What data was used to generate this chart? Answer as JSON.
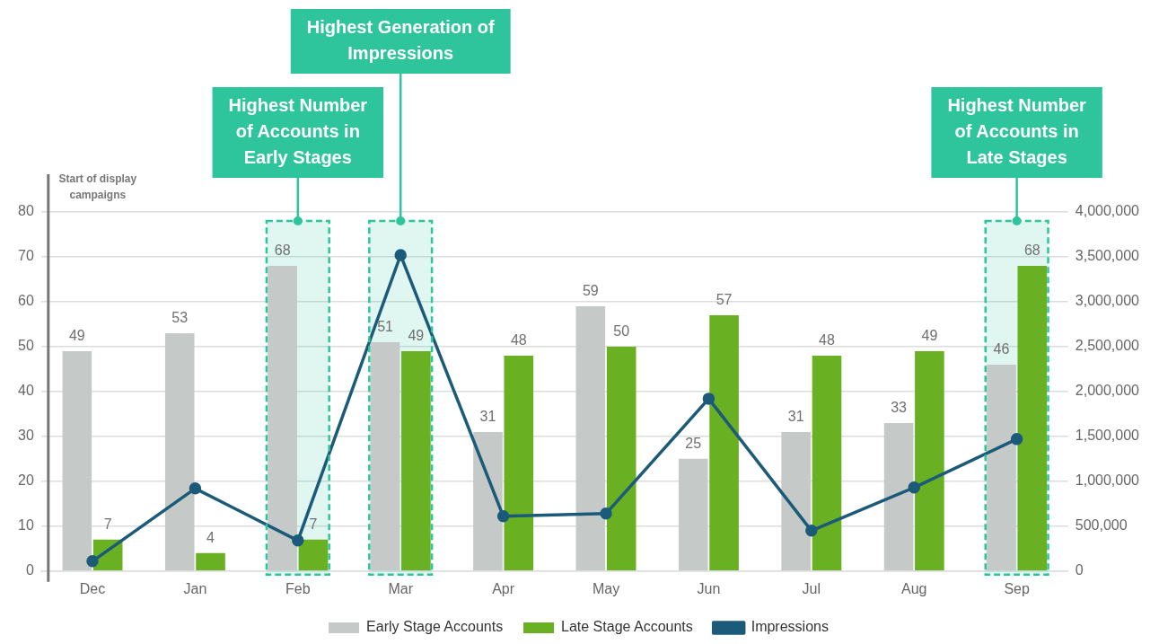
{
  "chart_data": {
    "type": "bar",
    "categories": [
      "Dec",
      "Jan",
      "Feb",
      "Mar",
      "Apr",
      "May",
      "Jun",
      "Jul",
      "Aug",
      "Sep"
    ],
    "series": [
      {
        "name": "Early Stage Accounts",
        "color": "#c5c9c7",
        "values": [
          49,
          53,
          68,
          51,
          31,
          59,
          25,
          31,
          33,
          46
        ],
        "value_labels": [
          "49",
          "53",
          "68",
          "51",
          "31",
          "59",
          "25",
          "31",
          "33",
          "46"
        ]
      },
      {
        "name": "Late Stage Accounts",
        "color": "#6ab023",
        "values": [
          7,
          4,
          7,
          49,
          48,
          50,
          57,
          48,
          49,
          68
        ],
        "value_labels": [
          "7",
          "4",
          "7",
          "49",
          "48",
          "50",
          "57",
          "48",
          "49",
          "68"
        ]
      },
      {
        "name": "Impressions",
        "type": "line",
        "axis": "y2",
        "color": "#1b5a78",
        "marker": "circle",
        "line_style": "solid",
        "values": [
          110000,
          920000,
          340000,
          3520000,
          610000,
          640000,
          1920000,
          450000,
          930000,
          1470000
        ]
      }
    ],
    "ylim": [
      0,
      80
    ],
    "yticks": [
      0,
      10,
      20,
      30,
      40,
      50,
      60,
      70,
      80
    ],
    "y2lim": [
      0,
      4000000
    ],
    "y2ticks": [
      {
        "value": 0,
        "label": "0"
      },
      {
        "value": 500000,
        "label": "500,000"
      },
      {
        "value": 1000000,
        "label": "1,000,000"
      },
      {
        "value": 1500000,
        "label": "1,500,000"
      },
      {
        "value": 2000000,
        "label": "2,000,000"
      },
      {
        "value": 2500000,
        "label": "2,500,000"
      },
      {
        "value": 3000000,
        "label": "3,000,000"
      },
      {
        "value": 3500000,
        "label": "3,500,000"
      },
      {
        "value": 4000000,
        "label": "4,000,000"
      }
    ],
    "annotations": [
      "Start of display campaigns"
    ],
    "bands": [
      {
        "axis": "x",
        "from": "Feb",
        "to": "Feb",
        "label": "Highest Number of Accounts in Early Stages",
        "color": "#2ec49c"
      },
      {
        "axis": "x",
        "from": "Mar",
        "to": "Mar",
        "label": "Highest Generation of Impressions",
        "color": "#2ec49c"
      },
      {
        "axis": "x",
        "from": "Sep",
        "to": "Sep",
        "label": "Highest Number of Accounts in Late Stages",
        "color": "#2ec49c"
      }
    ],
    "grid": "y",
    "legend": "bottom"
  }
}
